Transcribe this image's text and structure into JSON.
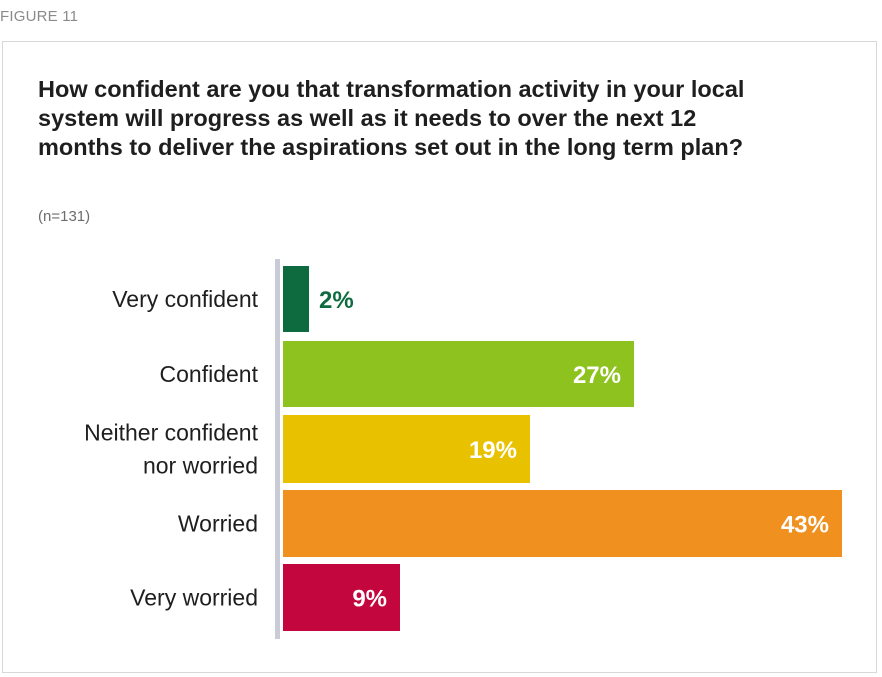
{
  "figure_label": "FIGURE 11",
  "chart_data": {
    "type": "bar",
    "orientation": "horizontal",
    "title": "How confident are you that transformation activity in your local system will progress as well as it needs to over the next 12 months to deliver the aspirations set out in the long term plan?",
    "subtitle": "(n=131)",
    "categories": [
      [
        "Very confident"
      ],
      [
        "Confident"
      ],
      [
        "Neither confident",
        "nor worried"
      ],
      [
        "Worried"
      ],
      [
        "Very worried"
      ]
    ],
    "values": [
      2,
      27,
      19,
      43,
      9
    ],
    "value_labels": [
      "2%",
      "27%",
      "19%",
      "43%",
      "9%"
    ],
    "colors": [
      "#0e6b3f",
      "#8dc21f",
      "#e8c200",
      "#f0901e",
      "#c4063f"
    ],
    "value_label_colors": [
      "#0e6b3f",
      "#ffffff",
      "#ffffff",
      "#ffffff",
      "#ffffff"
    ],
    "axis_color": "#c9ccd6",
    "grid": false,
    "legend": "none"
  }
}
